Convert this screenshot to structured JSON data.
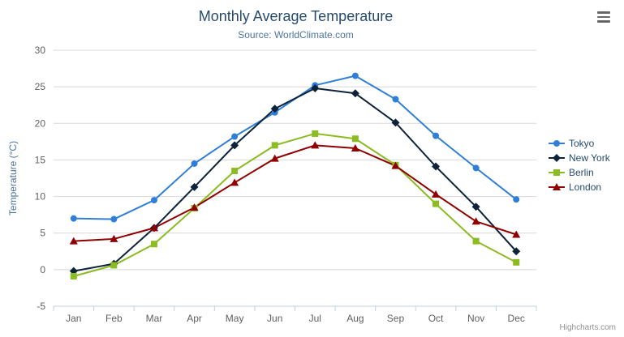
{
  "header": {
    "title": "Monthly Average Temperature",
    "subtitle": "Source: WorldClimate.com"
  },
  "toolbar": {
    "export_menu_icon": "hamburger-icon"
  },
  "credits": "Highcharts.com",
  "chart_data": {
    "type": "line",
    "title": "Monthly Average Temperature",
    "subtitle": "Source: WorldClimate.com",
    "xlabel": "",
    "ylabel": "Temperature (°C)",
    "ylim": [
      -5,
      30
    ],
    "yticks": [
      -5,
      0,
      5,
      10,
      15,
      20,
      25,
      30
    ],
    "grid": true,
    "legend_position": "right",
    "categories": [
      "Jan",
      "Feb",
      "Mar",
      "Apr",
      "May",
      "Jun",
      "Jul",
      "Aug",
      "Sep",
      "Oct",
      "Nov",
      "Dec"
    ],
    "series": [
      {
        "name": "Tokyo",
        "color": "#2f7ed8",
        "marker": "circle",
        "values": [
          7.0,
          6.9,
          9.5,
          14.5,
          18.2,
          21.5,
          25.2,
          26.5,
          23.3,
          18.3,
          13.9,
          9.6
        ]
      },
      {
        "name": "New York",
        "color": "#0d233a",
        "marker": "diamond",
        "values": [
          -0.2,
          0.8,
          5.7,
          11.3,
          17.0,
          22.0,
          24.8,
          24.1,
          20.1,
          14.1,
          8.6,
          2.5
        ]
      },
      {
        "name": "Berlin",
        "color": "#8bbc21",
        "marker": "square",
        "values": [
          -0.9,
          0.6,
          3.5,
          8.4,
          13.5,
          17.0,
          18.6,
          17.9,
          14.3,
          9.0,
          3.9,
          1.0
        ]
      },
      {
        "name": "London",
        "color": "#910000",
        "marker": "triangle",
        "values": [
          3.9,
          4.2,
          5.7,
          8.5,
          11.9,
          15.2,
          17.0,
          16.6,
          14.2,
          10.3,
          6.6,
          4.8
        ]
      }
    ],
    "colors": {
      "grid": "#d8d8d8",
      "axis": "#c0d0e0",
      "title_text": "#274b6d",
      "subtitle_text": "#4d759e",
      "axis_label_text": "#606060"
    }
  }
}
